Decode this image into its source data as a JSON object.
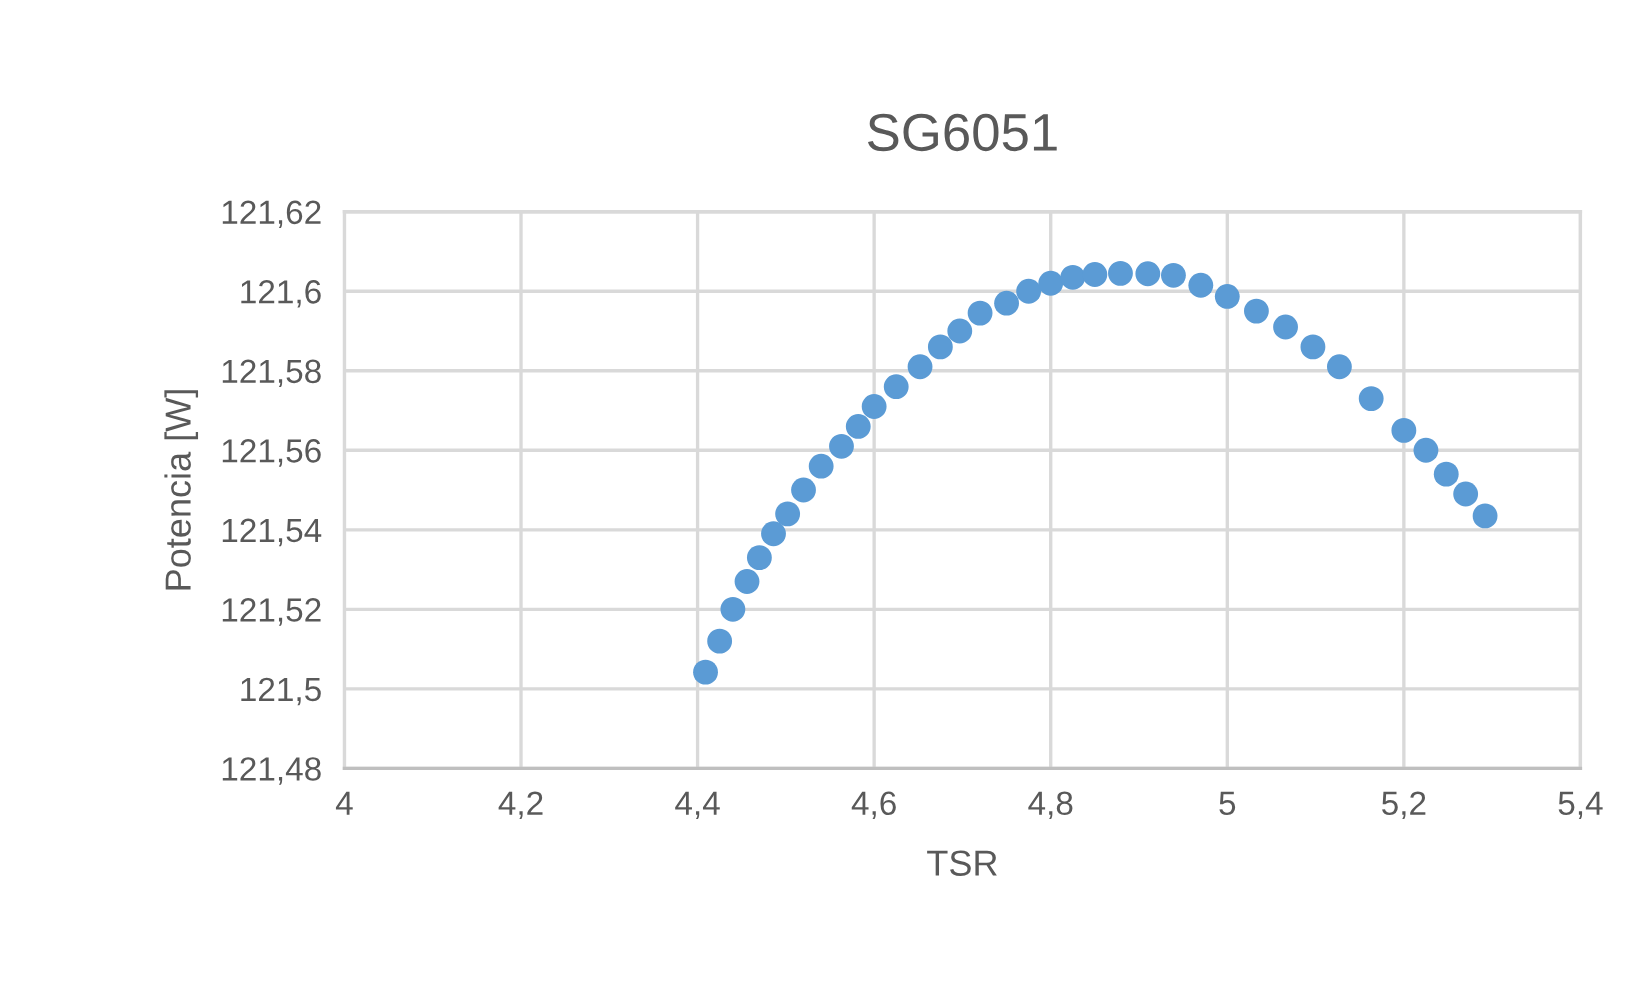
{
  "chart_data": {
    "type": "scatter",
    "title": "SG6051",
    "xlabel": "TSR",
    "ylabel": "Potencia [W]",
    "x": [
      4.409,
      4.425,
      4.44,
      4.456,
      4.47,
      4.486,
      4.502,
      4.52,
      4.54,
      4.563,
      4.582,
      4.6,
      4.625,
      4.652,
      4.675,
      4.697,
      4.72,
      4.75,
      4.775,
      4.8,
      4.825,
      4.85,
      4.879,
      4.91,
      4.939,
      4.97,
      5.0,
      5.033,
      5.066,
      5.097,
      5.127,
      5.163,
      5.2,
      5.225,
      5.248,
      5.27,
      5.292
    ],
    "values": [
      121.5042,
      121.512,
      121.52,
      121.527,
      121.533,
      121.539,
      121.544,
      121.55,
      121.556,
      121.561,
      121.566,
      121.571,
      121.576,
      121.581,
      121.586,
      121.59,
      121.5945,
      121.597,
      121.6,
      121.602,
      121.6035,
      121.6042,
      121.6045,
      121.6044,
      121.604,
      121.6015,
      121.5987,
      121.595,
      121.591,
      121.586,
      121.581,
      121.573,
      121.565,
      121.56,
      121.554,
      121.549,
      121.5435
    ],
    "color": "#5b9bd5",
    "marker": "circle",
    "grid": true,
    "xlim": [
      4,
      5.4
    ],
    "xticks": [
      4,
      {
        "value": 4.2,
        "label": "4,2"
      },
      {
        "value": 4.4,
        "label": "4,4"
      },
      {
        "value": 4.6,
        "label": "4,6"
      },
      {
        "value": 4.8,
        "label": "4,8"
      },
      5,
      {
        "value": 5.2,
        "label": "5,2"
      },
      {
        "value": 5.4,
        "label": "5,4"
      }
    ],
    "ylim": [
      121.48,
      121.62
    ],
    "yticks": [
      {
        "value": 121.48,
        "label": "121,48"
      },
      {
        "value": 121.5,
        "label": "121,5"
      },
      {
        "value": 121.52,
        "label": "121,52"
      },
      {
        "value": 121.54,
        "label": "121,54"
      },
      {
        "value": 121.56,
        "label": "121,56"
      },
      {
        "value": 121.58,
        "label": "121,58"
      },
      {
        "value": 121.6,
        "label": "121,6"
      },
      {
        "value": 121.62,
        "label": "121,62"
      }
    ]
  }
}
